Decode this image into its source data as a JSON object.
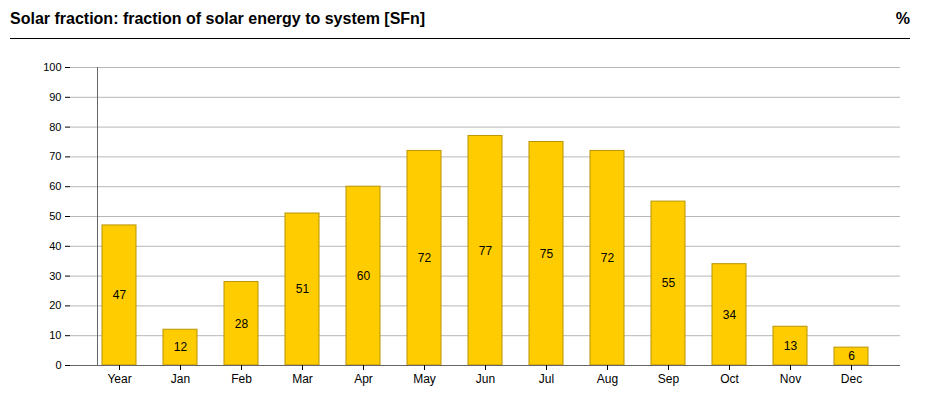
{
  "chart_data": {
    "type": "bar",
    "title": "Solar fraction: fraction of solar energy to system [SFn]",
    "y_label": "%",
    "categories": [
      "Year",
      "Jan",
      "Feb",
      "Mar",
      "Apr",
      "May",
      "Jun",
      "Jul",
      "Aug",
      "Sep",
      "Oct",
      "Nov",
      "Dec"
    ],
    "values": [
      47,
      12,
      28,
      51,
      60,
      72,
      77,
      75,
      72,
      55,
      34,
      13,
      6
    ],
    "color": "#ffcc00",
    "ylim": [
      0,
      100
    ],
    "yticks": [
      0,
      10,
      20,
      30,
      40,
      50,
      60,
      70,
      80,
      90,
      100
    ],
    "grid": true,
    "data_labels": true
  }
}
